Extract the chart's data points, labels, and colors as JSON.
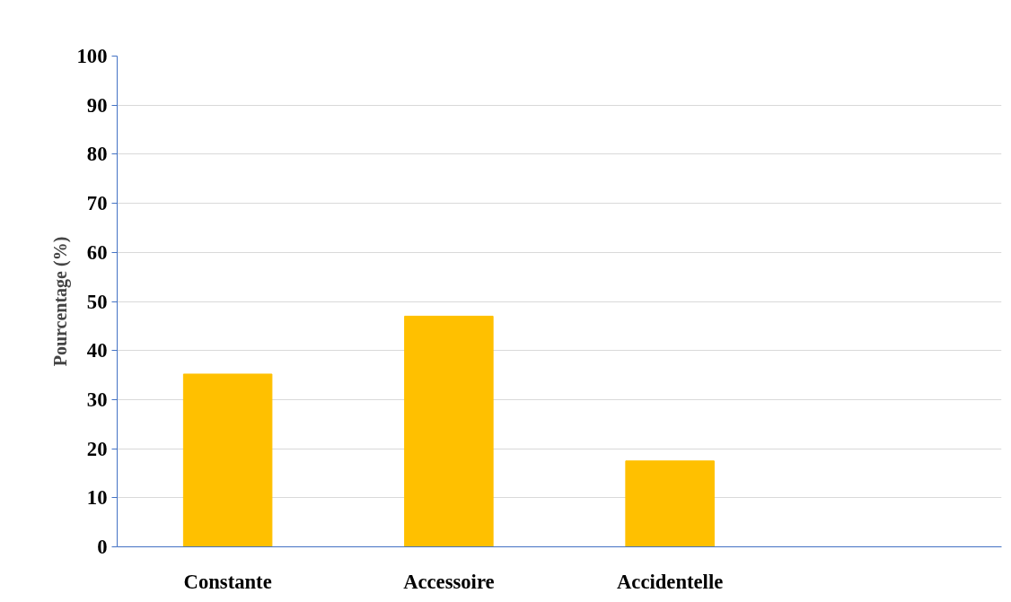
{
  "chart_data": {
    "type": "bar",
    "ylabel": "Pourcentage (%)",
    "categories": [
      "Constante",
      "Accessoire",
      "Accidentelle",
      null
    ],
    "values": [
      35.2,
      47,
      17.5,
      null
    ],
    "color": "#ffc000",
    "ylim": [
      0,
      100
    ],
    "yticks": [
      0,
      10,
      20,
      30,
      40,
      50,
      60,
      70,
      80,
      90,
      100
    ],
    "grid": "y"
  }
}
